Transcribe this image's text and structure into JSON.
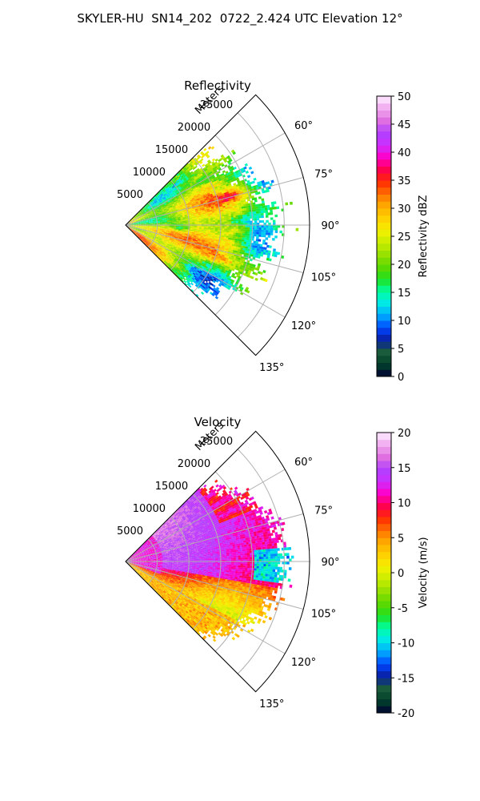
{
  "title": "SKYLER-HU  SN14_202  0722_2.424 UTC Elevation 12°",
  "chart_data": [
    {
      "type": "heatmap",
      "subtype": "polar-sector",
      "title": "Reflectivity",
      "range_label": "Meters",
      "range_ticks": [
        "5000",
        "10000",
        "15000",
        "20000",
        "25000"
      ],
      "range_tick_values": [
        5000,
        10000,
        15000,
        20000,
        25000
      ],
      "rmax": 29000,
      "theta_range": [
        45,
        135
      ],
      "theta_ticks": [
        "60°",
        "75°",
        "90°",
        "105°",
        "120°",
        "135°"
      ],
      "theta_tick_values": [
        60,
        75,
        90,
        105,
        120,
        135
      ],
      "colorbar": {
        "label": "Reflectivity dBZ",
        "range": [
          0,
          50
        ],
        "ticks": [
          "0",
          "5",
          "10",
          "15",
          "20",
          "25",
          "30",
          "35",
          "40",
          "45",
          "50"
        ]
      },
      "grid": true
    },
    {
      "type": "heatmap",
      "subtype": "polar-sector",
      "title": "Velocity",
      "range_label": "Meters",
      "range_ticks": [
        "5000",
        "10000",
        "15000",
        "20000",
        "25000"
      ],
      "range_tick_values": [
        5000,
        10000,
        15000,
        20000,
        25000
      ],
      "rmax": 29000,
      "theta_range": [
        45,
        135
      ],
      "theta_ticks": [
        "60°",
        "75°",
        "90°",
        "105°",
        "120°",
        "135°"
      ],
      "theta_tick_values": [
        60,
        75,
        90,
        105,
        120,
        135
      ],
      "colorbar": {
        "label": "Velocity (m/s)",
        "range": [
          -20,
          20
        ],
        "ticks": [
          "-20",
          "-15",
          "-10",
          "-5",
          "0",
          "5",
          "10",
          "15",
          "20"
        ]
      },
      "grid": true
    }
  ],
  "colormap": [
    "#000033",
    "#003f2a",
    "#1a5c3a",
    "#0a1ea0",
    "#0046ff",
    "#00a8ff",
    "#00e8e8",
    "#00ffa0",
    "#20e020",
    "#5ed800",
    "#96e000",
    "#c8ec00",
    "#f4f000",
    "#ffd000",
    "#ffaa00",
    "#ff7000",
    "#ff2a00",
    "#ff0050",
    "#ff00c8",
    "#cc30ff",
    "#b040ff",
    "#e070e0",
    "#f0a8f0",
    "#fff0ff"
  ]
}
